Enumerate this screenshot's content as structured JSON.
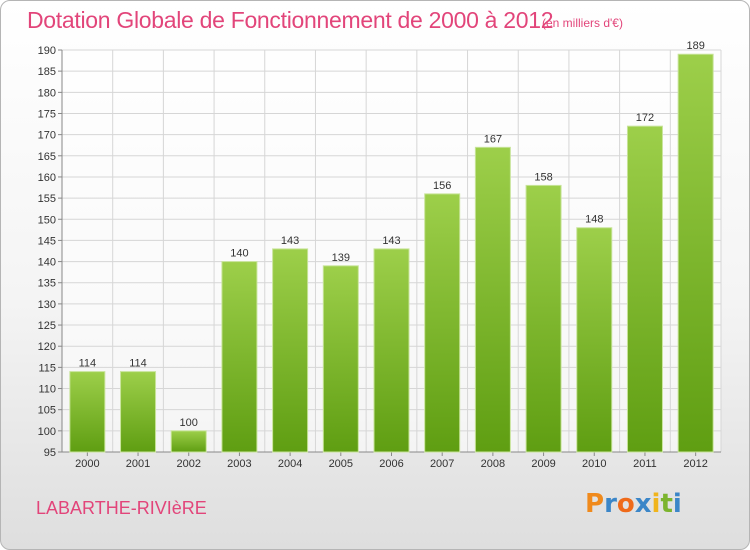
{
  "header": {
    "title": "Dotation Globale de Fonctionnement de 2000 à 2012",
    "subtitle": "(en milliers d'€)"
  },
  "footer": {
    "commune": "LABARTHE-RIVIèRE",
    "logo": [
      "P",
      "r",
      "o",
      "x",
      "i",
      "t",
      "i"
    ]
  },
  "colors": {
    "bar_top": "#9dcf4a",
    "bar_bottom": "#5f9e12",
    "title": "#e2457a",
    "grid": "#d6d6d6"
  },
  "chart_data": {
    "type": "bar",
    "title": "Dotation Globale de Fonctionnement de 2000 à 2012",
    "subtitle": "(en milliers d'€)",
    "categories": [
      "2000",
      "2001",
      "2002",
      "2003",
      "2004",
      "2005",
      "2006",
      "2007",
      "2008",
      "2009",
      "2010",
      "2011",
      "2012"
    ],
    "values": [
      114,
      114,
      100,
      140,
      143,
      139,
      143,
      156,
      167,
      158,
      148,
      172,
      189
    ],
    "ylim": [
      95,
      190
    ],
    "yticks": [
      95,
      100,
      105,
      110,
      115,
      120,
      125,
      130,
      135,
      140,
      145,
      150,
      155,
      160,
      165,
      170,
      175,
      180,
      185,
      190
    ],
    "grid": true,
    "legend": "none"
  }
}
